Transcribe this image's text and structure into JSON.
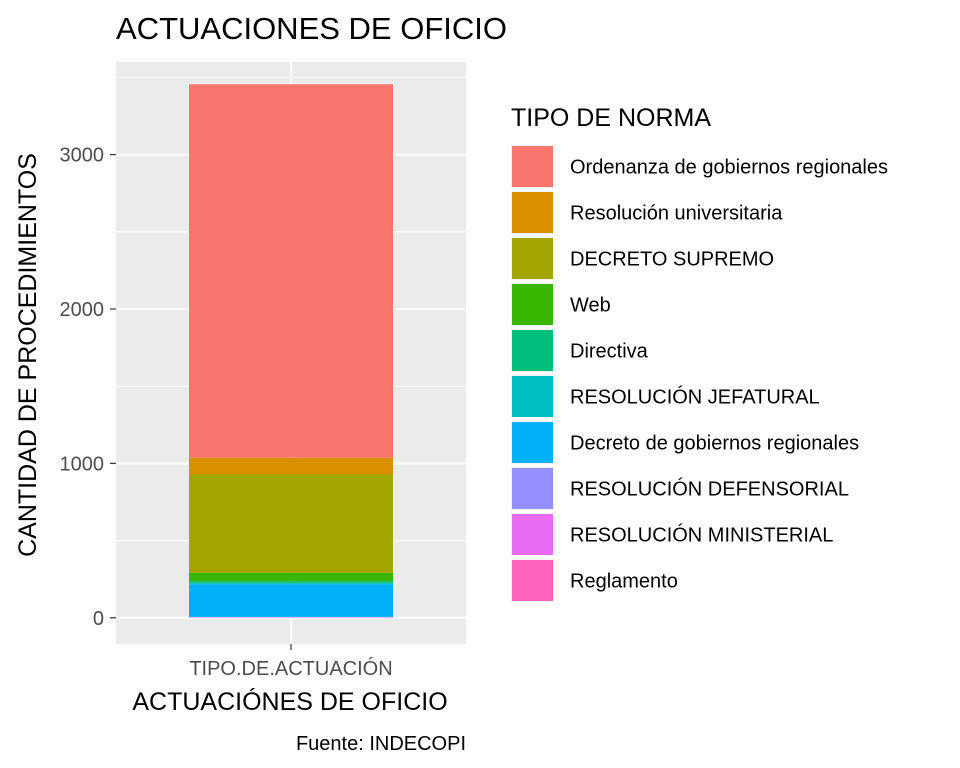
{
  "chart_data": {
    "type": "bar",
    "stacked": true,
    "title": "ACTUACIONES DE OFICIO",
    "xlabel": "ACTUACIÓNES DE OFICIO",
    "ylabel": "CANTIDAD DE PROCEDIMIENTOS",
    "caption": "Fuente: INDECOPI",
    "categories": [
      "TIPO.DE.ACTUACIÓN"
    ],
    "ylim": [
      -170,
      3600
    ],
    "yticks": [
      0,
      1000,
      2000,
      3000
    ],
    "grid": true,
    "legend_position": "right",
    "legend_title": "TIPO DE NORMA",
    "series": [
      {
        "name": "Ordenanza de gobiernos regionales",
        "color": "#F8766D",
        "values": [
          2420
        ]
      },
      {
        "name": "Resolución universitaria",
        "color": "#D89000",
        "values": [
          105
        ]
      },
      {
        "name": "DECRETO SUPREMO",
        "color": "#A3A500",
        "values": [
          640
        ]
      },
      {
        "name": "Web",
        "color": "#39B600",
        "values": [
          55
        ]
      },
      {
        "name": "Directiva",
        "color": "#00BF7D",
        "values": [
          12
        ]
      },
      {
        "name": "RESOLUCIÓN JEFATURAL",
        "color": "#00BFC4",
        "values": [
          8
        ]
      },
      {
        "name": "Decreto de gobiernos regionales",
        "color": "#00B0F6",
        "values": [
          210
        ]
      },
      {
        "name": "RESOLUCIÓN DEFENSORIAL",
        "color": "#9590FF",
        "values": [
          3
        ]
      },
      {
        "name": "RESOLUCIÓN MINISTERIAL",
        "color": "#E76BF3",
        "values": [
          2
        ]
      },
      {
        "name": "Reglamento",
        "color": "#FF62BC",
        "values": [
          1
        ]
      }
    ]
  }
}
